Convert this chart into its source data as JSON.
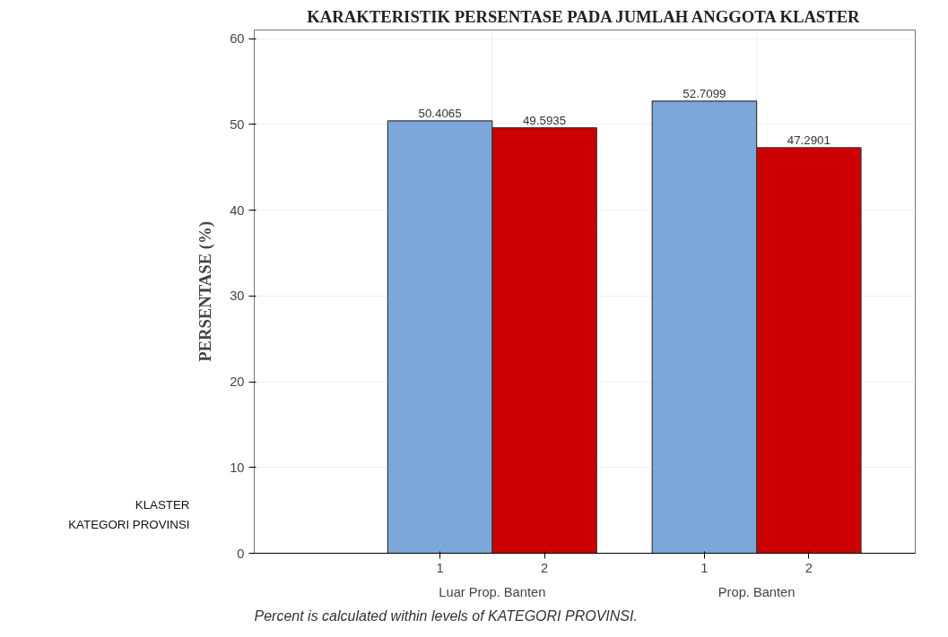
{
  "chart_data": {
    "type": "bar",
    "title": "KARAKTERISTIK PERSENTASE PADA JUMLAH ANGGOTA KLASTER",
    "ylabel": "PERSENTASE (%)",
    "xlabel": "KATEGORI PROVINSI",
    "legend_title": "KLASTER",
    "categories": [
      "Luar Prop. Banten",
      "Prop. Banten"
    ],
    "series": [
      {
        "name": "1",
        "color": "#7ba7d9",
        "values": [
          50.4065,
          52.7099
        ]
      },
      {
        "name": "2",
        "color": "#cc0000",
        "values": [
          49.5935,
          47.2901
        ]
      }
    ],
    "ylim": [
      0,
      61
    ],
    "yticks": [
      0,
      10,
      20,
      30,
      40,
      50,
      60
    ],
    "grid": true,
    "data_labels": true,
    "annotations": [
      "Percent is calculated within levels of KATEGORI PROVINSI."
    ]
  }
}
